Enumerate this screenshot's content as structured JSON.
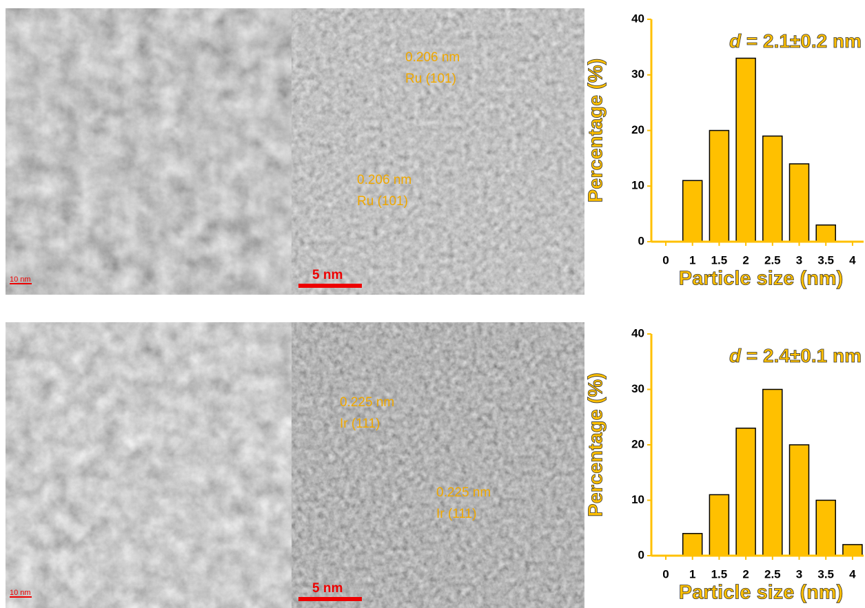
{
  "chart_data": [
    {
      "type": "bar",
      "x_label": "Particle size (nm)",
      "y_label": "Percentage (%)",
      "annotation": [
        "d",
        "= 2.1±0.2 nm"
      ],
      "categories": [
        "0",
        "1",
        "1.5",
        "2",
        "2.5",
        "3",
        "3.5",
        "4"
      ],
      "values": [
        0,
        11,
        20,
        33,
        19,
        14,
        3,
        0
      ],
      "color": "#ffc000",
      "ylim": [
        0,
        40
      ],
      "yticks": [
        0,
        10,
        20,
        30,
        40
      ]
    },
    {
      "type": "bar",
      "x_label": "Particle size (nm)",
      "y_label": "Percentage (%)",
      "annotation": [
        "d",
        "= 2.4±0.1 nm"
      ],
      "categories": [
        "0",
        "1",
        "1.5",
        "2",
        "2.5",
        "3",
        "3.5",
        "4"
      ],
      "values": [
        0,
        4,
        11,
        23,
        30,
        20,
        10,
        2
      ],
      "color": "#ffc000",
      "ylim": [
        0,
        40
      ],
      "yticks": [
        0,
        10,
        20,
        30,
        40
      ]
    }
  ],
  "tem_panels": [
    {
      "scale_bar": "10 nm",
      "annotations": []
    },
    {
      "scale_bar": "5 nm",
      "annotations": [
        [
          "0.206 nm",
          "Ru (101)"
        ],
        [
          "0.206 nm",
          "Ru (101)"
        ]
      ]
    },
    {
      "scale_bar": "10 nm",
      "annotations": []
    },
    {
      "scale_bar": "5 nm",
      "annotations": [
        [
          "0.225 nm",
          "Ir (111)"
        ],
        [
          "0.225 nm",
          "Ir (111)"
        ]
      ]
    }
  ]
}
